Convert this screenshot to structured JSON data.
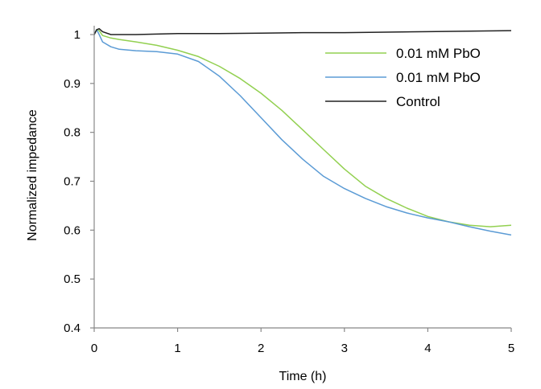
{
  "chart_data": {
    "type": "line",
    "xlabel": "Time (h)",
    "ylabel": "Normalized impedance",
    "xlim": [
      0,
      5
    ],
    "ylim": [
      0.4,
      1.02
    ],
    "x_ticks": [
      0,
      1,
      2,
      3,
      4,
      5
    ],
    "y_ticks": [
      0.4,
      0.5,
      0.6,
      0.7,
      0.8,
      0.9,
      1
    ],
    "x_tick_labels": [
      "0",
      "1",
      "2",
      "3",
      "4",
      "5"
    ],
    "y_tick_labels": [
      "0.4",
      "0.5",
      "0.6",
      "0.7",
      "0.8",
      "0.9",
      "1"
    ],
    "grid": false,
    "legend_position": "top-right",
    "series": [
      {
        "name": "0.01 mM PbO",
        "color": "#92D050",
        "x": [
          0,
          0.03,
          0.06,
          0.1,
          0.2,
          0.3,
          0.5,
          0.75,
          1.0,
          1.25,
          1.5,
          1.75,
          2.0,
          2.25,
          2.5,
          2.75,
          3.0,
          3.25,
          3.5,
          3.75,
          4.0,
          4.25,
          4.5,
          4.75,
          5.0
        ],
        "y": [
          1.0,
          1.01,
          1.008,
          0.998,
          0.993,
          0.99,
          0.985,
          0.978,
          0.968,
          0.955,
          0.935,
          0.91,
          0.88,
          0.845,
          0.805,
          0.765,
          0.725,
          0.69,
          0.665,
          0.645,
          0.628,
          0.617,
          0.61,
          0.607,
          0.61
        ]
      },
      {
        "name": "0.01 mM PbO",
        "color": "#5B9BD5",
        "x": [
          0,
          0.03,
          0.06,
          0.1,
          0.2,
          0.3,
          0.5,
          0.75,
          1.0,
          1.25,
          1.5,
          1.75,
          2.0,
          2.25,
          2.5,
          2.75,
          3.0,
          3.25,
          3.5,
          3.75,
          4.0,
          4.25,
          4.5,
          4.75,
          5.0
        ],
        "y": [
          1.0,
          1.01,
          1.0,
          0.985,
          0.975,
          0.97,
          0.967,
          0.965,
          0.96,
          0.945,
          0.915,
          0.875,
          0.83,
          0.785,
          0.745,
          0.71,
          0.685,
          0.665,
          0.648,
          0.635,
          0.625,
          0.617,
          0.607,
          0.598,
          0.59
        ]
      },
      {
        "name": "Control",
        "color": "#222222",
        "x": [
          0,
          0.03,
          0.06,
          0.1,
          0.2,
          0.35,
          0.5,
          0.75,
          1.0,
          1.5,
          2.0,
          2.5,
          3.0,
          3.5,
          4.0,
          4.5,
          5.0
        ],
        "y": [
          1.0,
          1.01,
          1.012,
          1.006,
          1.0,
          1.0,
          1.0,
          1.001,
          1.002,
          1.002,
          1.003,
          1.004,
          1.004,
          1.005,
          1.006,
          1.007,
          1.008
        ]
      }
    ]
  }
}
